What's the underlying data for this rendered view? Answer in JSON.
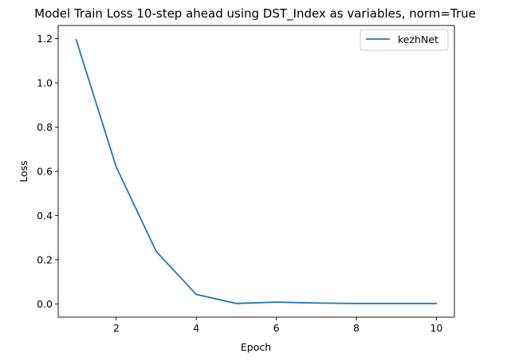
{
  "chart_data": {
    "type": "line",
    "title": "Model Train Loss 10-step ahead using DST_Index as variables, norm=True",
    "xlabel": "Epoch",
    "ylabel": "Loss",
    "xlim": [
      0.55,
      10.45
    ],
    "ylim": [
      -0.06,
      1.26
    ],
    "xticks": [
      2,
      4,
      6,
      8,
      10
    ],
    "yticks": [
      0.0,
      0.2,
      0.4,
      0.6,
      0.8,
      1.0,
      1.2
    ],
    "ytick_labels": [
      "0.0",
      "0.2",
      "0.4",
      "0.6",
      "0.8",
      "1.0",
      "1.2"
    ],
    "grid": false,
    "legend_position": "top-right",
    "series": [
      {
        "name": "kezhNet",
        "color": "#1f77b4",
        "x": [
          1,
          2,
          3,
          4,
          5,
          6,
          7,
          8,
          9,
          10
        ],
        "y": [
          1.195,
          0.62,
          0.237,
          0.043,
          0.002,
          0.008,
          0.004,
          0.002,
          0.002,
          0.002
        ]
      }
    ]
  }
}
